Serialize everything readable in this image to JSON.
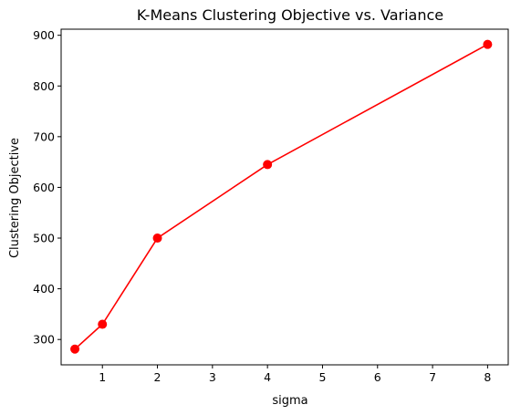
{
  "chart_data": {
    "type": "line",
    "title": "K-Means Clustering Objective vs. Variance",
    "xlabel": "sigma",
    "ylabel": "Clustering Objective",
    "xlim": [
      0.25,
      8.375
    ],
    "ylim": [
      250,
      912
    ],
    "xticks": [
      1,
      2,
      3,
      4,
      5,
      6,
      7,
      8
    ],
    "yticks": [
      300,
      400,
      500,
      600,
      700,
      800,
      900
    ],
    "grid": false,
    "series": [
      {
        "color": "#ff0000",
        "marker": "circle",
        "x": [
          0.5,
          1,
          2,
          4,
          8
        ],
        "y": [
          281,
          330,
          500,
          645,
          882
        ]
      }
    ]
  }
}
